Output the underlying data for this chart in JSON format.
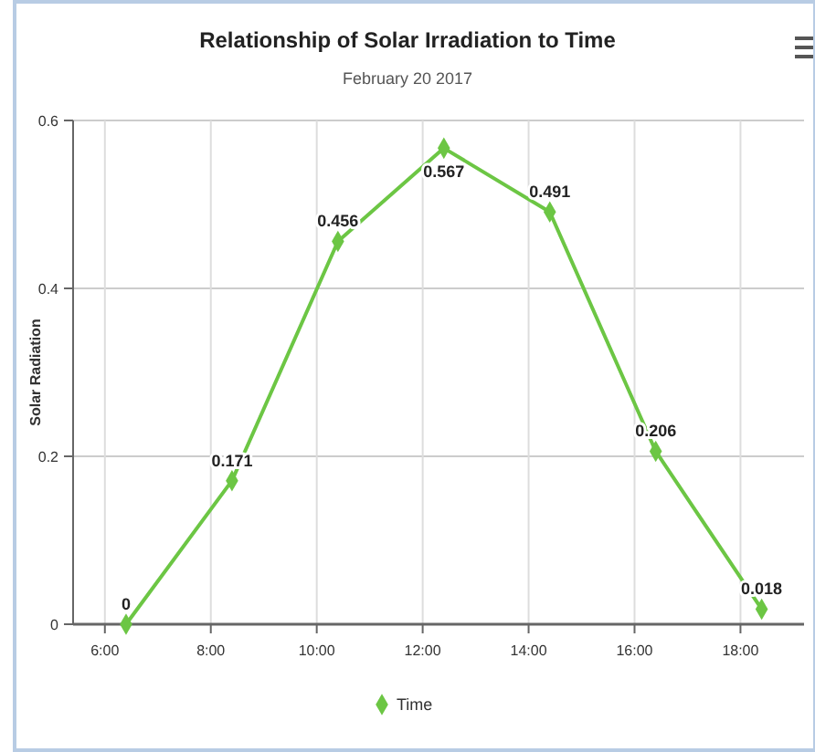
{
  "chart_data": {
    "type": "line",
    "title": "Relationship of Solar Irradiation to Time",
    "subtitle": "February 20 2017",
    "ylabel": "Solar Radiation",
    "x": [
      6.4,
      8.4,
      10.4,
      12.4,
      14.4,
      16.4,
      18.4
    ],
    "series": [
      {
        "name": "Time",
        "color": "#6cc644",
        "values": [
          0,
          0.171,
          0.456,
          0.567,
          0.491,
          0.206,
          0.018
        ]
      }
    ],
    "xlim": [
      5.4,
      19.2
    ],
    "xticks": [
      {
        "value": 6,
        "label": "6:00"
      },
      {
        "value": 8,
        "label": "8:00"
      },
      {
        "value": 10,
        "label": "10:00"
      },
      {
        "value": 12,
        "label": "12:00"
      },
      {
        "value": 14,
        "label": "14:00"
      },
      {
        "value": 16,
        "label": "16:00"
      },
      {
        "value": 18,
        "label": "18:00"
      }
    ],
    "ylim": [
      0,
      0.6
    ],
    "yticks": [
      0,
      0.2,
      0.4,
      0.6
    ],
    "grid": true,
    "legend": "bottom",
    "marker": "diamond",
    "line_style": "solid",
    "data_labels": true
  }
}
